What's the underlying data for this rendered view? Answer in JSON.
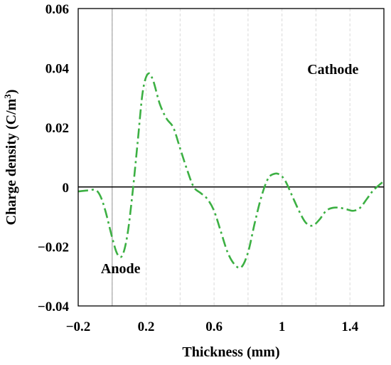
{
  "chart_data": {
    "type": "line",
    "title": "",
    "xlabel": "Thickness (mm)",
    "ylabel_main": "Charge density (C/m",
    "ylabel_sup": "3",
    "ylabel_close": ")",
    "xlim": [
      -0.2,
      1.6
    ],
    "ylim": [
      -0.04,
      0.06
    ],
    "x_ticks": [
      -0.2,
      0.2,
      0.6,
      1.0,
      1.4
    ],
    "x_tick_labels": [
      "−0.2",
      "0.2",
      "0.6",
      "1",
      "1.4"
    ],
    "y_ticks": [
      -0.04,
      -0.02,
      0,
      0.02,
      0.04,
      0.06
    ],
    "y_tick_labels": [
      "−0.04",
      "−0.02",
      "0",
      "0.02",
      "0.04",
      "0.06"
    ],
    "grid": "vertical-dashed",
    "electrode_line_x": 0,
    "zero_line": true,
    "series": [
      {
        "color": "#3cb043",
        "style": "dash-dot",
        "x": [
          -0.2,
          -0.15,
          -0.1,
          -0.07,
          -0.04,
          0.0,
          0.03,
          0.06,
          0.09,
          0.12,
          0.15,
          0.18,
          0.21,
          0.24,
          0.28,
          0.32,
          0.36,
          0.4,
          0.44,
          0.48,
          0.52,
          0.56,
          0.6,
          0.64,
          0.68,
          0.72,
          0.76,
          0.8,
          0.84,
          0.88,
          0.92,
          0.96,
          0.99,
          1.02,
          1.06,
          1.1,
          1.14,
          1.18,
          1.22,
          1.26,
          1.3,
          1.34,
          1.38,
          1.42,
          1.46,
          1.5,
          1.54,
          1.6
        ],
        "y": [
          -0.0015,
          -0.0012,
          -0.001,
          -0.003,
          -0.008,
          -0.017,
          -0.0225,
          -0.023,
          -0.016,
          -0.002,
          0.015,
          0.032,
          0.038,
          0.036,
          0.028,
          0.023,
          0.02,
          0.013,
          0.006,
          0.0,
          -0.002,
          -0.004,
          -0.008,
          -0.015,
          -0.022,
          -0.026,
          -0.027,
          -0.022,
          -0.012,
          -0.003,
          0.003,
          0.0045,
          0.004,
          0.002,
          -0.003,
          -0.008,
          -0.012,
          -0.013,
          -0.011,
          -0.008,
          -0.007,
          -0.007,
          -0.0075,
          -0.008,
          -0.007,
          -0.004,
          -0.001,
          0.002
        ]
      }
    ],
    "annotations": [
      {
        "text": "Cathode",
        "x": 1.3,
        "y": 0.038
      },
      {
        "text": "Anode",
        "x": 0.05,
        "y": -0.029
      }
    ]
  },
  "colors": {
    "series": "#3cb043",
    "axis": "#000000",
    "grid": "#d9d9d9",
    "electrode_line": "#a6a6a6"
  }
}
